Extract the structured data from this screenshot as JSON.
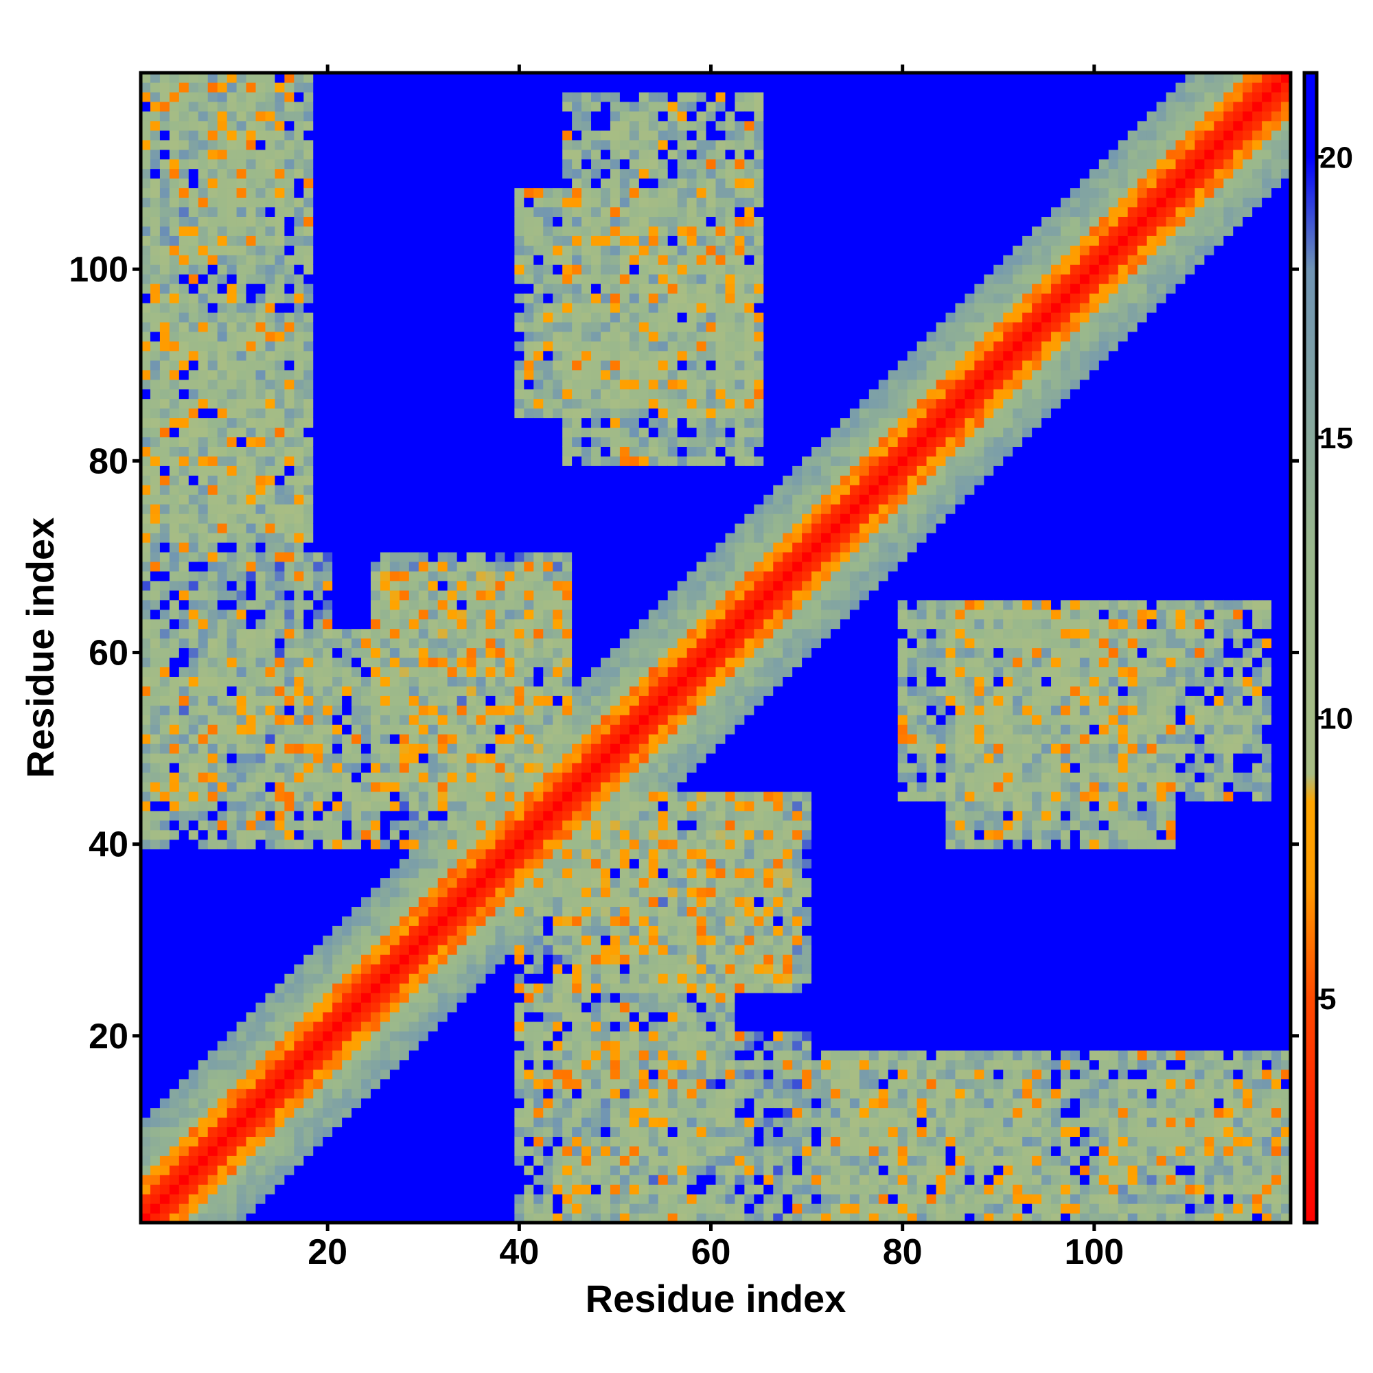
{
  "chart_data": {
    "type": "heatmap",
    "title": "",
    "xlabel": "Residue index",
    "ylabel": "Residue index",
    "n": 120,
    "x_range": [
      1,
      120
    ],
    "y_range": [
      1,
      120
    ],
    "x_ticks": [
      20,
      40,
      60,
      80,
      100
    ],
    "y_ticks": [
      20,
      40,
      60,
      80,
      100
    ],
    "colorbar": {
      "range": [
        1,
        21.5
      ],
      "ticks": [
        5,
        10,
        15,
        20
      ],
      "color_stops": [
        {
          "value": 1,
          "color": "#ff0000"
        },
        {
          "value": 5,
          "color": "#ff4a00"
        },
        {
          "value": 7,
          "color": "#ff9a00"
        },
        {
          "value": 8.5,
          "color": "#ffa500"
        },
        {
          "value": 9,
          "color": "#a8bd84"
        },
        {
          "value": 13,
          "color": "#9ab88c"
        },
        {
          "value": 18,
          "color": "#6f94b4"
        },
        {
          "value": 20,
          "color": "#0000ff"
        }
      ]
    },
    "description_values": "Symmetric residue-residue distance map; values near 1 on the diagonal rising to >20 far from contacts.",
    "contact_blocks": [
      {
        "i": [
          1,
          18
        ],
        "j": [
          72,
          120
        ],
        "value": 13
      },
      {
        "i": [
          45,
          65
        ],
        "j": [
          80,
          118
        ],
        "value": 13
      },
      {
        "i": [
          85,
          108
        ],
        "j": [
          40,
          65
        ],
        "value": 13
      },
      {
        "i": [
          25,
          45
        ],
        "j": [
          45,
          68
        ],
        "value": 12
      },
      {
        "i": [
          1,
          25
        ],
        "j": [
          40,
          62
        ],
        "value": 13
      },
      {
        "i": [
          70,
          95
        ],
        "j": [
          1,
          18
        ],
        "value": 13
      },
      {
        "i": [
          100,
          120
        ],
        "j": [
          1,
          15
        ],
        "value": 14
      },
      {
        "i": [
          45,
          70
        ],
        "j": [
          1,
          20
        ],
        "value": 14
      },
      {
        "i": [
          40,
          70
        ],
        "j": [
          25,
          45
        ],
        "value": 14
      }
    ]
  }
}
